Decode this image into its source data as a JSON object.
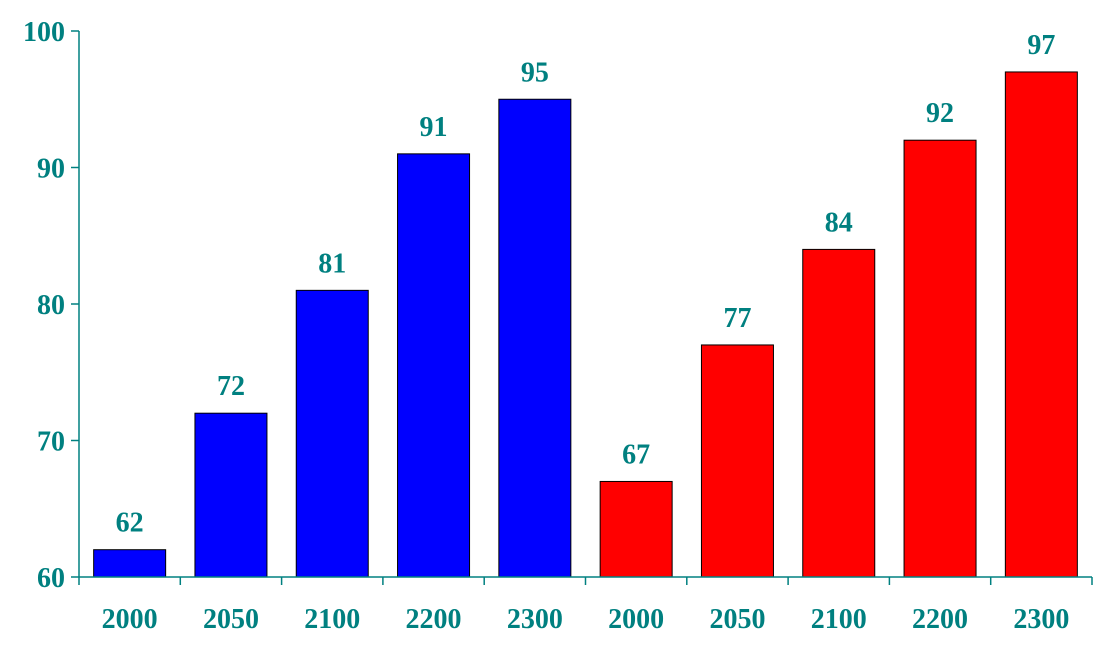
{
  "chart_data": {
    "type": "bar",
    "title": "",
    "xlabel": "",
    "ylabel": "",
    "ylim": [
      60,
      100
    ],
    "yticks": [
      60,
      70,
      80,
      90,
      100
    ],
    "grid": false,
    "legend": "none",
    "categories": [
      "2000",
      "2050",
      "2100",
      "2200",
      "2300",
      "2000",
      "2050",
      "2100",
      "2200",
      "2300"
    ],
    "values": [
      62,
      72,
      81,
      91,
      95,
      67,
      77,
      84,
      92,
      97
    ],
    "bar_colors": [
      "#0000ff",
      "#0000ff",
      "#0000ff",
      "#0000ff",
      "#0000ff",
      "#ff0000",
      "#ff0000",
      "#ff0000",
      "#ff0000",
      "#ff0000"
    ],
    "label_color": "#008080",
    "axis_color": "#008080",
    "bar_outline_color": "#000000"
  }
}
